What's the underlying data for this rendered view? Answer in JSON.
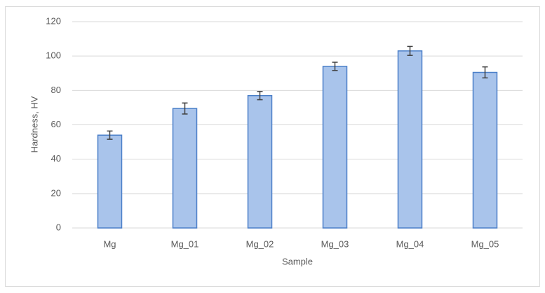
{
  "chart_data": {
    "type": "bar",
    "x_label": "Sample",
    "y_label": "Hardness, HV",
    "categories": [
      "Mg",
      "Mg_01",
      "Mg_02",
      "Mg_03",
      "Mg_04",
      "Mg_05"
    ],
    "values": [
      54,
      69.5,
      77,
      94,
      103,
      90.5
    ],
    "errors": [
      2.4,
      3.2,
      2.4,
      2.4,
      2.6,
      3.2
    ],
    "color": "#a9c4eb",
    "edge_color": "#4a7fc8",
    "error_color": "#404040",
    "ylim": [
      0,
      120
    ],
    "yticks": [
      0,
      20,
      40,
      60,
      80,
      100,
      120
    ],
    "grid": true
  }
}
